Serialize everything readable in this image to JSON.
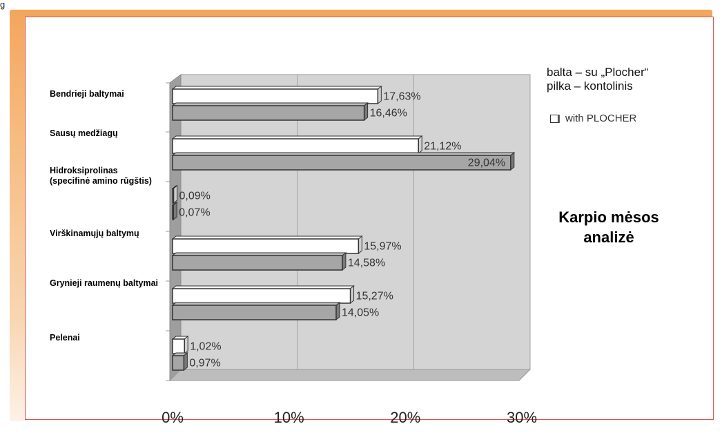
{
  "corner_text": "g",
  "legend": {
    "line1": "balta – su „Plocher“",
    "line2": "pilka – kontolinis",
    "partial_english": "with PLOCHER"
  },
  "side_title": {
    "line1": "Karpio mėsos",
    "line2": "analizė"
  },
  "colors": {
    "frame_orange": "#f3a65d",
    "panel_border": "#d9534f",
    "plot_bg": "#d6d6d6",
    "bar_white": "#ffffff",
    "bar_gray": "#a6a6a6"
  },
  "chart_data": {
    "type": "bar",
    "orientation": "horizontal",
    "categories": [
      "Bendrieji baltymai",
      "Sausų medžiagų",
      "Hidroksiprolinas (specifinė amino rūgštis)",
      "Virškinamųjų baltymų",
      "Grynieji raumenų baltymai",
      "Pelenai"
    ],
    "series": [
      {
        "values": [
          17.63,
          21.12,
          0.09,
          15.97,
          15.27,
          1.02
        ],
        "labels": [
          "17,63%",
          "21,12%",
          "0,09%",
          "15,97%",
          "15,27%",
          "1,02%"
        ],
        "color": "#ffffff"
      },
      {
        "values": [
          16.46,
          29.04,
          0.07,
          14.58,
          14.05,
          0.97
        ],
        "labels": [
          "16,46%",
          "29,04%",
          "0,07%",
          "14,58%",
          "14,05%",
          "0,97%"
        ],
        "color": "#a6a6a6"
      }
    ],
    "xlim": [
      0,
      30
    ],
    "xticks": [
      "0%",
      "10%",
      "20%",
      "30%"
    ],
    "grid": true,
    "style": "3d"
  }
}
